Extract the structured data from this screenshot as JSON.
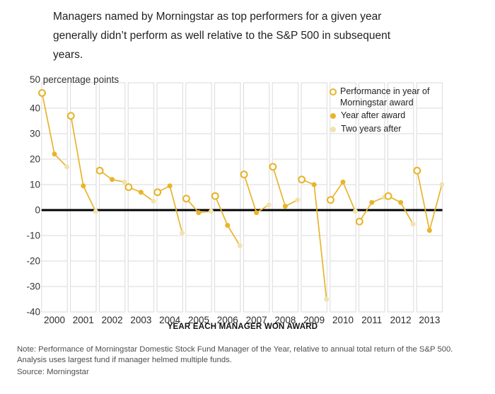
{
  "title_lines": [
    "Managers named by Morningstar as top performers for a given year",
    "generally didn’t perform as well relative to the S&P 500 in subsequent",
    "years."
  ],
  "y_axis_top_label": "50 percentage points",
  "x_axis_title": "YEAR EACH MANAGER WON AWARD",
  "note_lines": [
    "Note: Performance of Morningstar Domestic Stock Fund Manager of the Year, relative to annual total return of the S&P 500.",
    "Analysis uses largest fund if manager helmed multiple funds."
  ],
  "source": "Source: Morningstar",
  "legend": [
    {
      "label": "Performance in year of Morningstar award",
      "marker": "open"
    },
    {
      "label": "Year after award",
      "marker": "filled"
    },
    {
      "label": "Two years after",
      "marker": "light"
    }
  ],
  "colors": {
    "gold": "#E8B42C",
    "pale": "#F1E2AE",
    "grid": "#DADADA",
    "zero_line": "#000000",
    "text": "#333333"
  },
  "chart_data": {
    "type": "line",
    "categories": [
      "2000",
      "2001",
      "2002",
      "2003",
      "2004",
      "2005",
      "2006",
      "2007",
      "2008",
      "2009",
      "2010",
      "2011",
      "2012",
      "2013"
    ],
    "series": [
      {
        "name": "Performance in year of Morningstar award",
        "marker": "open",
        "values": [
          46,
          37,
          15.5,
          9,
          7,
          4.5,
          5.5,
          14,
          17,
          12,
          4,
          -4.5,
          5.5,
          15.5
        ]
      },
      {
        "name": "Year after award",
        "marker": "filled",
        "values": [
          22,
          9.5,
          12,
          7,
          9.5,
          -1,
          -6,
          -1,
          1.5,
          10,
          11,
          3,
          3,
          -8
        ]
      },
      {
        "name": "Two years after",
        "marker": "light",
        "values": [
          17,
          -0.5,
          11,
          3.5,
          -9,
          -0.5,
          -14,
          2,
          4,
          -35,
          -0.5,
          5,
          -5.5,
          10
        ]
      }
    ],
    "title": "Managers named by Morningstar as top performers for a given year generally didn’t perform as well relative to the S&P 500 in subsequent years.",
    "xlabel": "YEAR EACH MANAGER WON AWARD",
    "ylabel": "50 percentage points",
    "ylim": [
      -40,
      50
    ],
    "yticks": [
      40,
      30,
      20,
      10,
      0,
      -10,
      -20,
      -30,
      -40
    ],
    "ytick_interval": 10,
    "zero_line": true,
    "grid": "cell-columns",
    "legend_position": "top-right",
    "points_per_year_connected": true
  }
}
